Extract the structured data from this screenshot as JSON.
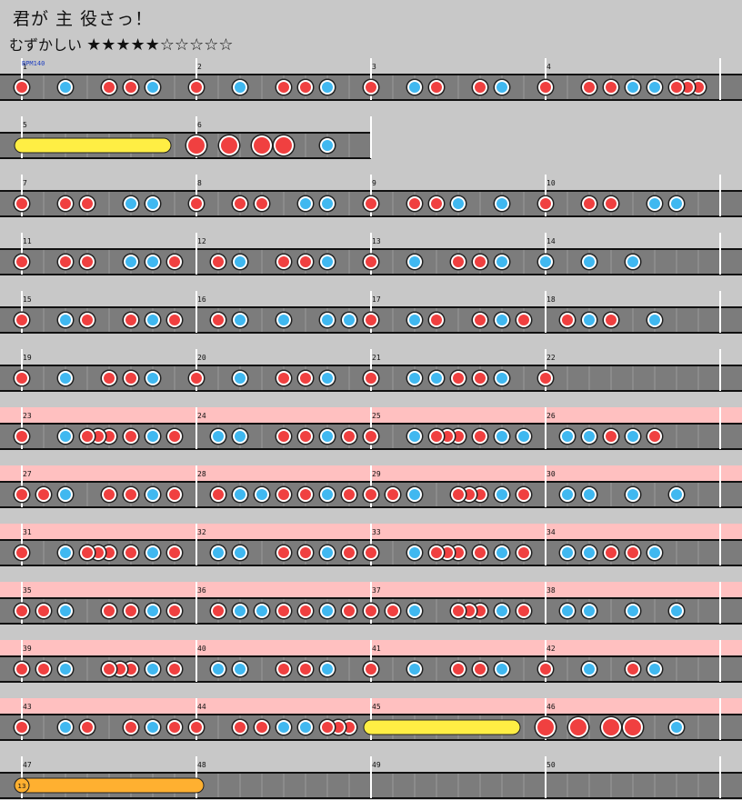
{
  "song": {
    "title": "君が 主 役さっ！"
  },
  "difficulty": {
    "label": "むずかしい",
    "stars": "★★★★★☆☆☆☆☆"
  },
  "bpm_label": "BPM140",
  "note_colors": {
    "don": "#f04040",
    "ka": "#40b8f0",
    "drumroll": "#ffee44",
    "balloon": "#ffb030",
    "section_bg": "#ffc0c0",
    "lane": "#7c7c7c"
  },
  "balloon_count": "13",
  "rows": [
    {
      "measures": [
        "1",
        "2",
        "3",
        "4"
      ],
      "bpm": true,
      "section": false,
      "lanes": 4,
      "notes": [
        [
          0,
          "d"
        ],
        [
          0.25,
          "k"
        ],
        [
          0.5,
          "d"
        ],
        [
          0.625,
          "d"
        ],
        [
          0.75,
          "k"
        ],
        [
          1,
          "d"
        ],
        [
          1.25,
          "k"
        ],
        [
          1.5,
          "d"
        ],
        [
          1.625,
          "d"
        ],
        [
          1.75,
          "k"
        ],
        [
          2,
          "d"
        ],
        [
          2.25,
          "k"
        ],
        [
          2.375,
          "d"
        ],
        [
          2.625,
          "d"
        ],
        [
          2.75,
          "k"
        ],
        [
          3,
          "d"
        ],
        [
          3.25,
          "d"
        ],
        [
          3.375,
          "d"
        ],
        [
          3.5,
          "k"
        ],
        [
          3.625,
          "k"
        ],
        [
          3.75,
          "d"
        ],
        [
          3.8125,
          "d"
        ],
        [
          3.875,
          "d"
        ]
      ]
    },
    {
      "measures": [
        "5",
        "6"
      ],
      "section": false,
      "lanes": 2,
      "notes": [
        [
          1,
          "D"
        ],
        [
          1.1875,
          "D"
        ],
        [
          1.375,
          "D"
        ],
        [
          1.5,
          "D"
        ],
        [
          1.75,
          "k"
        ]
      ],
      "rolls": [
        [
          0,
          0.8125,
          "roll"
        ]
      ]
    },
    {
      "measures": [
        "7",
        "8",
        "9",
        "10"
      ],
      "section": false,
      "lanes": 4,
      "notes": [
        [
          0,
          "d"
        ],
        [
          0.25,
          "d"
        ],
        [
          0.375,
          "d"
        ],
        [
          0.625,
          "k"
        ],
        [
          0.75,
          "k"
        ],
        [
          1,
          "d"
        ],
        [
          1.25,
          "d"
        ],
        [
          1.375,
          "d"
        ],
        [
          1.625,
          "k"
        ],
        [
          1.75,
          "k"
        ],
        [
          2,
          "d"
        ],
        [
          2.25,
          "d"
        ],
        [
          2.375,
          "d"
        ],
        [
          2.5,
          "k"
        ],
        [
          2.75,
          "k"
        ],
        [
          3,
          "d"
        ],
        [
          3.25,
          "d"
        ],
        [
          3.375,
          "d"
        ],
        [
          3.625,
          "k"
        ],
        [
          3.75,
          "k"
        ]
      ]
    },
    {
      "measures": [
        "11",
        "12",
        "13",
        "14"
      ],
      "section": false,
      "lanes": 4,
      "notes": [
        [
          0,
          "d"
        ],
        [
          0.25,
          "d"
        ],
        [
          0.375,
          "d"
        ],
        [
          0.625,
          "k"
        ],
        [
          0.75,
          "k"
        ],
        [
          0.875,
          "d"
        ],
        [
          1.125,
          "d"
        ],
        [
          1.25,
          "k"
        ],
        [
          1.5,
          "d"
        ],
        [
          1.625,
          "d"
        ],
        [
          1.75,
          "k"
        ],
        [
          2,
          "d"
        ],
        [
          2.25,
          "k"
        ],
        [
          2.5,
          "d"
        ],
        [
          2.625,
          "d"
        ],
        [
          2.75,
          "k"
        ],
        [
          3,
          "k"
        ],
        [
          3.25,
          "k"
        ],
        [
          3.5,
          "k"
        ]
      ]
    },
    {
      "measures": [
        "15",
        "16",
        "17",
        "18"
      ],
      "section": false,
      "lanes": 4,
      "notes": [
        [
          0,
          "d"
        ],
        [
          0.25,
          "k"
        ],
        [
          0.375,
          "d"
        ],
        [
          0.625,
          "d"
        ],
        [
          0.75,
          "k"
        ],
        [
          0.875,
          "d"
        ],
        [
          1.125,
          "d"
        ],
        [
          1.25,
          "k"
        ],
        [
          1.5,
          "k"
        ],
        [
          1.75,
          "k"
        ],
        [
          1.875,
          "k"
        ],
        [
          2,
          "d"
        ],
        [
          2.25,
          "k"
        ],
        [
          2.375,
          "d"
        ],
        [
          2.625,
          "d"
        ],
        [
          2.75,
          "k"
        ],
        [
          2.875,
          "d"
        ],
        [
          3.125,
          "d"
        ],
        [
          3.25,
          "k"
        ],
        [
          3.375,
          "d"
        ],
        [
          3.625,
          "k"
        ]
      ]
    },
    {
      "measures": [
        "19",
        "20",
        "21",
        "22"
      ],
      "section": false,
      "lanes": 4,
      "notes": [
        [
          0,
          "d"
        ],
        [
          0.25,
          "k"
        ],
        [
          0.5,
          "d"
        ],
        [
          0.625,
          "d"
        ],
        [
          0.75,
          "k"
        ],
        [
          1,
          "d"
        ],
        [
          1.25,
          "k"
        ],
        [
          1.5,
          "d"
        ],
        [
          1.625,
          "d"
        ],
        [
          1.75,
          "k"
        ],
        [
          2,
          "d"
        ],
        [
          2.25,
          "k"
        ],
        [
          2.375,
          "k"
        ],
        [
          2.5,
          "d"
        ],
        [
          2.625,
          "d"
        ],
        [
          2.75,
          "k"
        ],
        [
          3,
          "d"
        ]
      ]
    },
    {
      "measures": [
        "23",
        "24",
        "25",
        "26"
      ],
      "section": true,
      "lanes": 4,
      "notes": [
        [
          0,
          "d"
        ],
        [
          0.25,
          "k"
        ],
        [
          0.375,
          "d"
        ],
        [
          0.4375,
          "d"
        ],
        [
          0.5,
          "d"
        ],
        [
          0.625,
          "d"
        ],
        [
          0.75,
          "k"
        ],
        [
          0.875,
          "d"
        ],
        [
          1.125,
          "k"
        ],
        [
          1.25,
          "k"
        ],
        [
          1.5,
          "d"
        ],
        [
          1.625,
          "d"
        ],
        [
          1.75,
          "k"
        ],
        [
          1.875,
          "d"
        ],
        [
          2,
          "d"
        ],
        [
          2.25,
          "k"
        ],
        [
          2.375,
          "d"
        ],
        [
          2.4375,
          "d"
        ],
        [
          2.5,
          "d"
        ],
        [
          2.625,
          "d"
        ],
        [
          2.75,
          "k"
        ],
        [
          2.875,
          "k"
        ],
        [
          3.125,
          "k"
        ],
        [
          3.25,
          "k"
        ],
        [
          3.375,
          "d"
        ],
        [
          3.5,
          "k"
        ],
        [
          3.625,
          "d"
        ]
      ]
    },
    {
      "measures": [
        "27",
        "28",
        "29",
        "30"
      ],
      "section": true,
      "lanes": 4,
      "notes": [
        [
          0,
          "d"
        ],
        [
          0.125,
          "d"
        ],
        [
          0.25,
          "k"
        ],
        [
          0.5,
          "d"
        ],
        [
          0.625,
          "d"
        ],
        [
          0.75,
          "k"
        ],
        [
          0.875,
          "d"
        ],
        [
          1.125,
          "d"
        ],
        [
          1.25,
          "k"
        ],
        [
          1.375,
          "k"
        ],
        [
          1.5,
          "d"
        ],
        [
          1.625,
          "d"
        ],
        [
          1.75,
          "k"
        ],
        [
          1.875,
          "d"
        ],
        [
          2,
          "d"
        ],
        [
          2.125,
          "d"
        ],
        [
          2.25,
          "k"
        ],
        [
          2.5,
          "d"
        ],
        [
          2.5625,
          "d"
        ],
        [
          2.625,
          "d"
        ],
        [
          2.75,
          "k"
        ],
        [
          2.875,
          "d"
        ],
        [
          3.125,
          "k"
        ],
        [
          3.25,
          "k"
        ],
        [
          3.5,
          "k"
        ],
        [
          3.75,
          "k"
        ]
      ]
    },
    {
      "measures": [
        "31",
        "32",
        "33",
        "34"
      ],
      "section": true,
      "lanes": 4,
      "notes": [
        [
          0,
          "d"
        ],
        [
          0.25,
          "k"
        ],
        [
          0.375,
          "d"
        ],
        [
          0.4375,
          "d"
        ],
        [
          0.5,
          "d"
        ],
        [
          0.625,
          "d"
        ],
        [
          0.75,
          "k"
        ],
        [
          0.875,
          "d"
        ],
        [
          1.125,
          "k"
        ],
        [
          1.25,
          "k"
        ],
        [
          1.5,
          "d"
        ],
        [
          1.625,
          "d"
        ],
        [
          1.75,
          "k"
        ],
        [
          1.875,
          "d"
        ],
        [
          2,
          "d"
        ],
        [
          2.25,
          "k"
        ],
        [
          2.375,
          "d"
        ],
        [
          2.4375,
          "d"
        ],
        [
          2.5,
          "d"
        ],
        [
          2.625,
          "d"
        ],
        [
          2.75,
          "k"
        ],
        [
          2.875,
          "d"
        ],
        [
          3.125,
          "k"
        ],
        [
          3.25,
          "k"
        ],
        [
          3.375,
          "d"
        ],
        [
          3.5,
          "d"
        ],
        [
          3.625,
          "k"
        ]
      ]
    },
    {
      "measures": [
        "35",
        "36",
        "37",
        "38"
      ],
      "section": true,
      "lanes": 4,
      "notes": [
        [
          0,
          "d"
        ],
        [
          0.125,
          "d"
        ],
        [
          0.25,
          "k"
        ],
        [
          0.5,
          "d"
        ],
        [
          0.625,
          "d"
        ],
        [
          0.75,
          "k"
        ],
        [
          0.875,
          "d"
        ],
        [
          1.125,
          "d"
        ],
        [
          1.25,
          "k"
        ],
        [
          1.375,
          "k"
        ],
        [
          1.5,
          "d"
        ],
        [
          1.625,
          "d"
        ],
        [
          1.75,
          "k"
        ],
        [
          1.875,
          "d"
        ],
        [
          2,
          "d"
        ],
        [
          2.125,
          "d"
        ],
        [
          2.25,
          "k"
        ],
        [
          2.5,
          "d"
        ],
        [
          2.5625,
          "d"
        ],
        [
          2.625,
          "d"
        ],
        [
          2.75,
          "k"
        ],
        [
          2.875,
          "d"
        ],
        [
          3.125,
          "k"
        ],
        [
          3.25,
          "k"
        ],
        [
          3.5,
          "k"
        ],
        [
          3.75,
          "k"
        ]
      ]
    },
    {
      "measures": [
        "39",
        "40",
        "41",
        "42"
      ],
      "section": true,
      "lanes": 4,
      "notes": [
        [
          0,
          "d"
        ],
        [
          0.125,
          "d"
        ],
        [
          0.25,
          "k"
        ],
        [
          0.5,
          "d"
        ],
        [
          0.5625,
          "d"
        ],
        [
          0.625,
          "d"
        ],
        [
          0.75,
          "k"
        ],
        [
          0.875,
          "d"
        ],
        [
          1.125,
          "k"
        ],
        [
          1.25,
          "k"
        ],
        [
          1.5,
          "d"
        ],
        [
          1.625,
          "d"
        ],
        [
          1.75,
          "k"
        ],
        [
          2,
          "d"
        ],
        [
          2.25,
          "k"
        ],
        [
          2.5,
          "d"
        ],
        [
          2.625,
          "d"
        ],
        [
          2.75,
          "k"
        ],
        [
          3,
          "d"
        ],
        [
          3.25,
          "k"
        ],
        [
          3.5,
          "d"
        ],
        [
          3.625,
          "k"
        ]
      ]
    },
    {
      "measures": [
        "43",
        "44",
        "45",
        "46"
      ],
      "section": true,
      "lanes": 4,
      "notes": [
        [
          0,
          "d"
        ],
        [
          0.25,
          "k"
        ],
        [
          0.375,
          "d"
        ],
        [
          0.625,
          "d"
        ],
        [
          0.75,
          "k"
        ],
        [
          0.875,
          "d"
        ],
        [
          1,
          "d"
        ],
        [
          1.25,
          "d"
        ],
        [
          1.375,
          "d"
        ],
        [
          1.5,
          "k"
        ],
        [
          1.625,
          "k"
        ],
        [
          1.75,
          "d"
        ],
        [
          1.8125,
          "d"
        ],
        [
          1.875,
          "d"
        ],
        [
          3,
          "D"
        ],
        [
          3.1875,
          "D"
        ],
        [
          3.375,
          "D"
        ],
        [
          3.5,
          "D"
        ],
        [
          3.75,
          "k"
        ]
      ],
      "rolls": [
        [
          2,
          2.8125,
          "roll"
        ]
      ]
    },
    {
      "measures": [
        "47",
        "48",
        "49",
        "50"
      ],
      "section": false,
      "lanes": 4,
      "notes": [],
      "rolls": [
        [
          0,
          1,
          "balloon"
        ]
      ]
    }
  ]
}
